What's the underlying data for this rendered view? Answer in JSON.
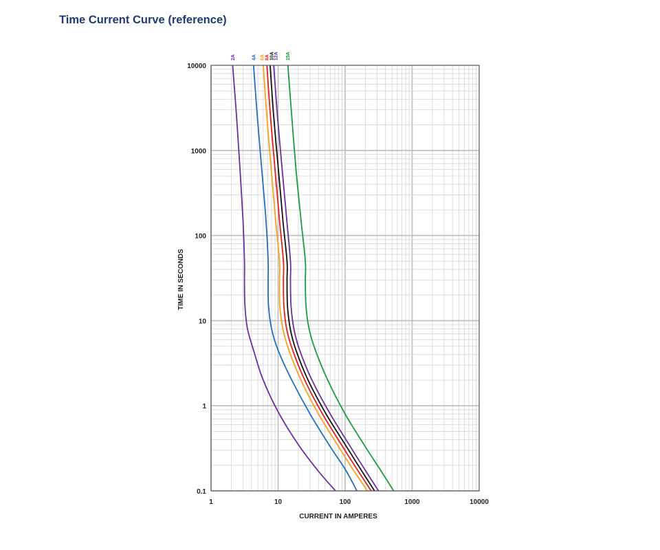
{
  "page": {
    "title": "Time Current Curve (reference)"
  },
  "chart_data": {
    "type": "line",
    "x_scale": "log",
    "y_scale": "log",
    "xlim": [
      1,
      10000
    ],
    "ylim": [
      0.1,
      10000
    ],
    "xlabel": "CURRENT  IN AMPERES",
    "ylabel": "TIME  IN SECONDS",
    "x_ticks": [
      "1",
      "10",
      "100",
      "1000",
      "10000"
    ],
    "y_ticks": [
      "0.1",
      "1",
      "10",
      "100",
      "1000",
      "10000"
    ],
    "grid": true,
    "series": [
      {
        "name": "2A",
        "color": "#6a2da3",
        "points": [
          [
            2.1,
            10000
          ],
          [
            2.4,
            2500
          ],
          [
            2.7,
            600
          ],
          [
            3.0,
            150
          ],
          [
            3.15,
            50
          ],
          [
            3.15,
            30
          ],
          [
            3.2,
            15
          ],
          [
            3.5,
            8
          ],
          [
            4.5,
            4
          ],
          [
            6.0,
            2
          ],
          [
            10,
            0.85
          ],
          [
            20,
            0.35
          ],
          [
            40,
            0.17
          ],
          [
            72,
            0.1
          ]
        ]
      },
      {
        "name": "4A",
        "color": "#1f6fbf",
        "points": [
          [
            4.3,
            10000
          ],
          [
            4.9,
            2500
          ],
          [
            5.7,
            600
          ],
          [
            6.6,
            150
          ],
          [
            7.1,
            50
          ],
          [
            7.1,
            30
          ],
          [
            7.2,
            15
          ],
          [
            8.0,
            8
          ],
          [
            10,
            4.5
          ],
          [
            16,
            2
          ],
          [
            30,
            0.8
          ],
          [
            60,
            0.33
          ],
          [
            100,
            0.18
          ],
          [
            150,
            0.1
          ]
        ]
      },
      {
        "name": "6A",
        "color": "#f7a21b",
        "points": [
          [
            6.0,
            10000
          ],
          [
            6.8,
            2500
          ],
          [
            7.9,
            600
          ],
          [
            9.2,
            150
          ],
          [
            10.5,
            50
          ],
          [
            10.5,
            30
          ],
          [
            10.6,
            15
          ],
          [
            11.8,
            8
          ],
          [
            14.5,
            4.5
          ],
          [
            22,
            2
          ],
          [
            40,
            0.8
          ],
          [
            80,
            0.33
          ],
          [
            130,
            0.18
          ],
          [
            215,
            0.1
          ]
        ]
      },
      {
        "name": "8A",
        "color": "#e02020",
        "points": [
          [
            6.8,
            10000
          ],
          [
            7.7,
            2500
          ],
          [
            9.0,
            600
          ],
          [
            10.5,
            150
          ],
          [
            12.0,
            50
          ],
          [
            12.0,
            30
          ],
          [
            12.2,
            15
          ],
          [
            13.4,
            8
          ],
          [
            16.5,
            4.5
          ],
          [
            25,
            2
          ],
          [
            46,
            0.8
          ],
          [
            92,
            0.33
          ],
          [
            150,
            0.18
          ],
          [
            245,
            0.1
          ]
        ]
      },
      {
        "name": "10A",
        "color": "#111111",
        "points": [
          [
            7.6,
            10000
          ],
          [
            8.6,
            2500
          ],
          [
            10.1,
            600
          ],
          [
            11.8,
            150
          ],
          [
            13.6,
            50
          ],
          [
            13.6,
            30
          ],
          [
            13.8,
            15
          ],
          [
            15.2,
            8
          ],
          [
            18.5,
            4.5
          ],
          [
            28,
            2
          ],
          [
            52,
            0.8
          ],
          [
            105,
            0.33
          ],
          [
            170,
            0.18
          ],
          [
            275,
            0.1
          ]
        ]
      },
      {
        "name": "12A",
        "color": "#6a2da3",
        "points": [
          [
            8.6,
            10000
          ],
          [
            9.8,
            2500
          ],
          [
            11.5,
            600
          ],
          [
            13.5,
            150
          ],
          [
            15.3,
            50
          ],
          [
            15.3,
            30
          ],
          [
            15.6,
            15
          ],
          [
            17.2,
            8
          ],
          [
            21,
            4.5
          ],
          [
            32,
            2
          ],
          [
            60,
            0.8
          ],
          [
            120,
            0.33
          ],
          [
            195,
            0.18
          ],
          [
            315,
            0.1
          ]
        ]
      },
      {
        "name": "15A",
        "color": "#1a9b3c",
        "points": [
          [
            14.0,
            10000
          ],
          [
            16.0,
            2500
          ],
          [
            18.5,
            600
          ],
          [
            22,
            150
          ],
          [
            25.5,
            50
          ],
          [
            25.5,
            30
          ],
          [
            26,
            15
          ],
          [
            29,
            8
          ],
          [
            36,
            4.5
          ],
          [
            55,
            2
          ],
          [
            100,
            0.8
          ],
          [
            200,
            0.33
          ],
          [
            330,
            0.18
          ],
          [
            530,
            0.1
          ]
        ]
      }
    ]
  }
}
